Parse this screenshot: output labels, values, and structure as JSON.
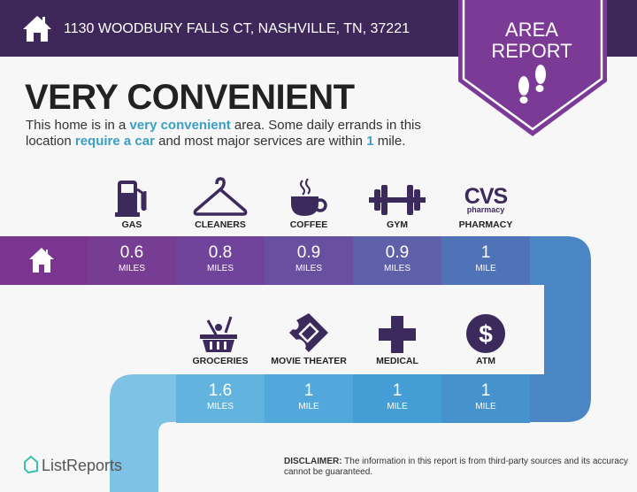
{
  "header": {
    "address": "1130 WOODBURY FALLS CT, NASHVILLE, TN, 37221",
    "home_icon": "home-icon"
  },
  "badge": {
    "line1": "AREA",
    "line2": "REPORT",
    "icon": "footprints-icon",
    "color": "#7b3a96"
  },
  "title": "VERY CONVENIENT",
  "description": {
    "p1": "This home is in a ",
    "h1": "very convenient",
    "p2": " area. Some daily errands in this location ",
    "h2": "require a car",
    "p3": " and most major services are within ",
    "h3": "1",
    "p4": " mile."
  },
  "row1": [
    {
      "label": "GAS",
      "icon": "gas-pump-icon",
      "value": "0.6",
      "unit": "MILES",
      "color": "#773d93"
    },
    {
      "label": "CLEANERS",
      "icon": "hanger-icon",
      "value": "0.8",
      "unit": "MILES",
      "color": "#70449a"
    },
    {
      "label": "COFFEE",
      "icon": "coffee-cup-icon",
      "value": "0.9",
      "unit": "MILES",
      "color": "#684f9f"
    },
    {
      "label": "GYM",
      "icon": "dumbbell-icon",
      "value": "0.9",
      "unit": "MILES",
      "color": "#5f60aa"
    },
    {
      "label": "PHARMACY",
      "icon": "cvs-pharmacy-logo",
      "logo_text": "CVS pharmacy",
      "value": "1",
      "unit": "MILE",
      "color": "#5073b8"
    }
  ],
  "row2": [
    {
      "label": "GROCERIES",
      "icon": "grocery-basket-icon",
      "value": "1.6",
      "unit": "MILES",
      "color": "#62b3de"
    },
    {
      "label": "MOVIE THEATER",
      "icon": "ticket-icon",
      "value": "1",
      "unit": "MILE",
      "color": "#52a8da"
    },
    {
      "label": "MEDICAL",
      "icon": "medical-cross-icon",
      "value": "1",
      "unit": "MILE",
      "color": "#449dd4"
    },
    {
      "label": "ATM",
      "icon": "dollar-icon",
      "value": "1",
      "unit": "MILE",
      "color": "#4592cc"
    }
  ],
  "colors": {
    "header": "#3e2859",
    "icon": "#3d2a5c",
    "highlight": "#3a9fc4"
  },
  "footer": {
    "logo": "ListReports",
    "disclaimer_label": "DISCLAIMER:",
    "disclaimer": " The information in this report is from third-party sources and its accuracy cannot be guaranteed."
  }
}
